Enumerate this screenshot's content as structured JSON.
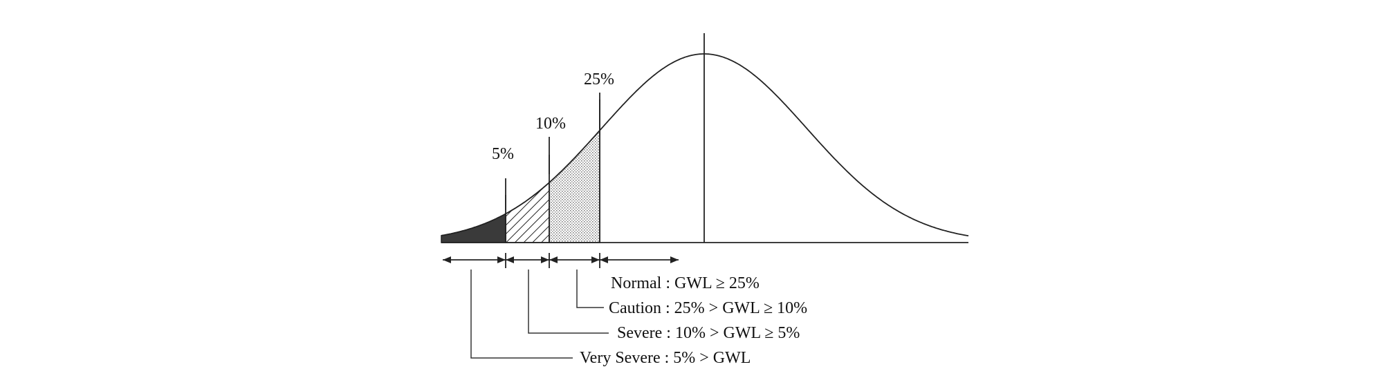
{
  "diagram": {
    "percentile_labels": {
      "p5": "5%",
      "p10": "10%",
      "p25": "25%"
    },
    "categories": {
      "normal": "Normal : GWL  ≥ 25%",
      "caution": "Caution : 25% > GWL ≥ 10%",
      "severe": "Severe : 10% > GWL ≥ 5%",
      "very_severe": "Very Severe :   5% > GWL"
    },
    "colors": {
      "line": "#222222",
      "very_severe_fill": "#3a3a3a",
      "severe_hatch": "#222222",
      "caution_dots": "#8a8a8a",
      "background": "#ffffff"
    }
  }
}
